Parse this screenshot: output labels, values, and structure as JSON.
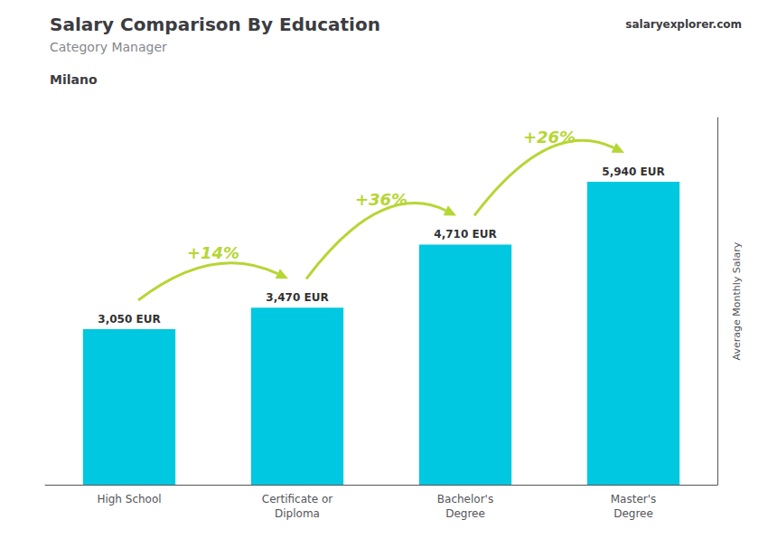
{
  "chart_data": {
    "type": "bar",
    "title": "Salary Comparison By Education",
    "subtitle": "Category Manager",
    "location": "Milano",
    "brand": "salaryexplorer.com",
    "ylabel": "Average Monthly Salary",
    "categories": [
      "High School",
      "Certificate or\nDiploma",
      "Bachelor's\nDegree",
      "Master's\nDegree"
    ],
    "values": [
      3050,
      3470,
      4710,
      5940
    ],
    "value_labels": [
      "3,050 EUR",
      "3,470 EUR",
      "4,710 EUR",
      "5,940 EUR"
    ],
    "data_labels": true,
    "annotations": [
      "+14%",
      "+36%",
      "+26%"
    ],
    "color": "#00c8e0",
    "ylim": [
      0,
      7200
    ],
    "tick_labels": "x",
    "grid": false
  }
}
